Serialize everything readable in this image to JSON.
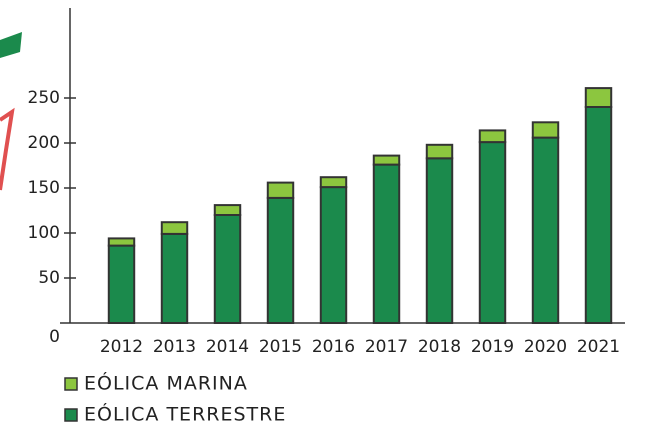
{
  "chart_data": {
    "type": "stacked_bar",
    "categories": [
      "2012",
      "2013",
      "2014",
      "2015",
      "2016",
      "2017",
      "2018",
      "2019",
      "2020",
      "2021"
    ],
    "series": [
      {
        "name": "EÓLICA TERRESTRE",
        "color": "#1b8a4c",
        "values": [
          86,
          99,
          120,
          139,
          151,
          176,
          183,
          201,
          206,
          240
        ]
      },
      {
        "name": "EÓLICA MARINA",
        "color": "#8cc63f",
        "values": [
          8,
          13,
          11,
          17,
          11,
          10,
          15,
          13,
          17,
          21
        ]
      }
    ],
    "ylim": [
      0,
      350
    ],
    "yticks": [
      0,
      50,
      100,
      150,
      200,
      250
    ]
  }
}
